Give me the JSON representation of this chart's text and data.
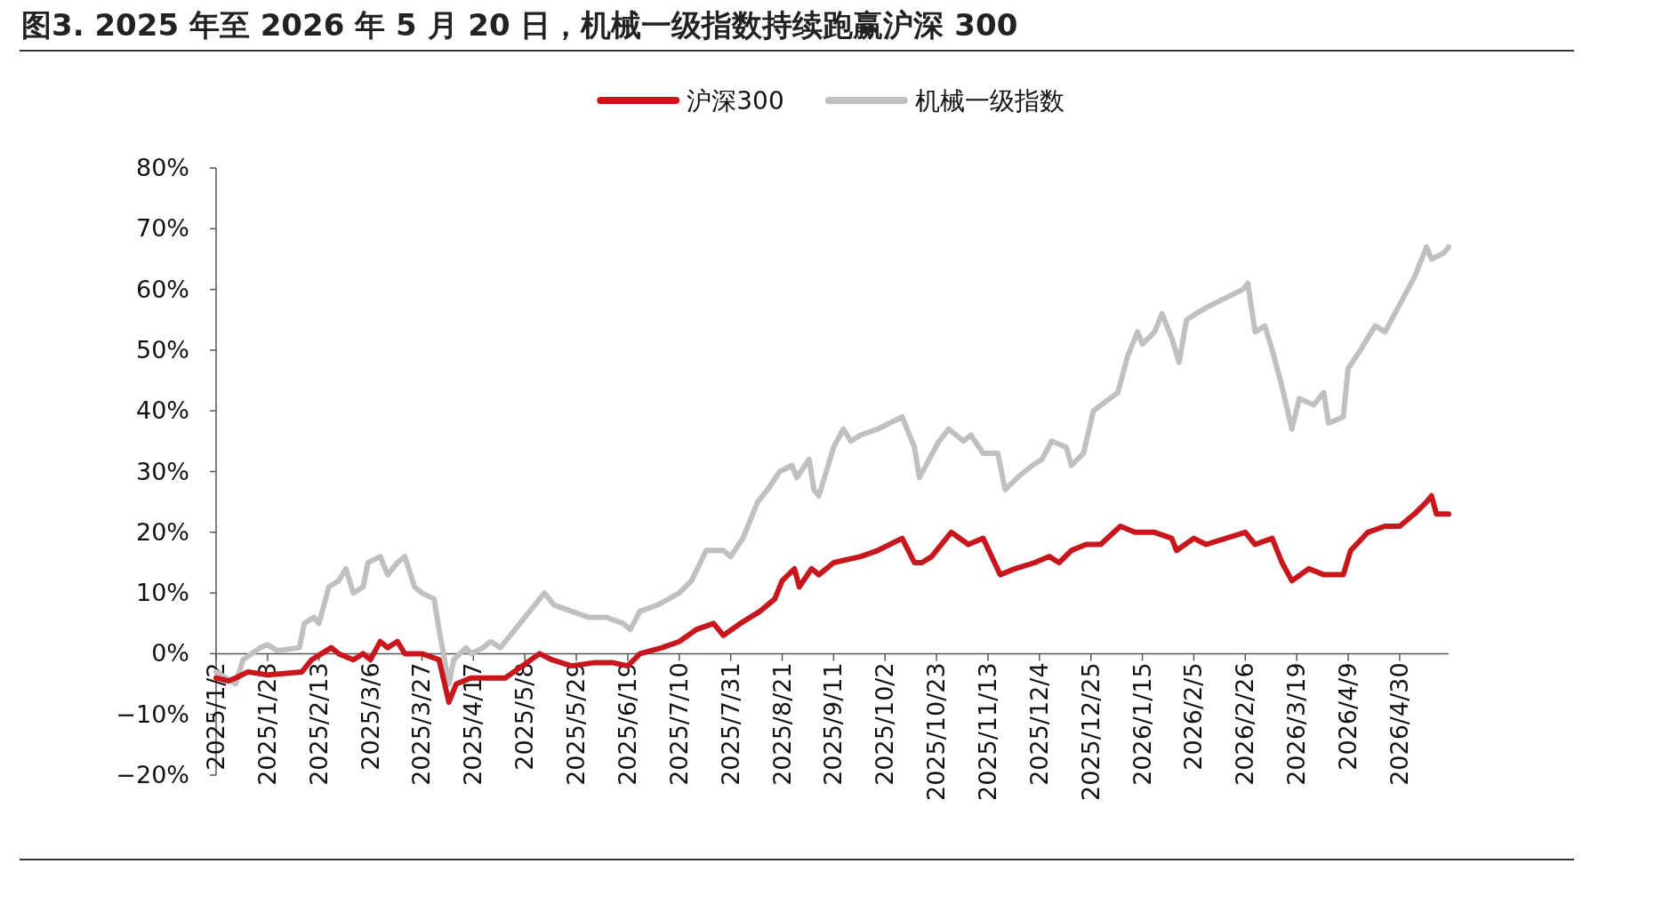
{
  "chart_data": {
    "type": "line",
    "title": "图3. 2025 年至 2026 年 5 月 20 日，机械一级指数持续跑赢沪深 300",
    "legend": "top",
    "xlim": [
      "2025-01-02",
      "2026-05-20"
    ],
    "xticks": [
      {
        "value": "2025-01-02",
        "label": "2025/1/2"
      },
      {
        "value": "2025-01-23",
        "label": "2025/1/23"
      },
      {
        "value": "2025-02-13",
        "label": "2025/2/13"
      },
      {
        "value": "2025-03-06",
        "label": "2025/3/6"
      },
      {
        "value": "2025-03-27",
        "label": "2025/3/27"
      },
      {
        "value": "2025-04-17",
        "label": "2025/4/17"
      },
      {
        "value": "2025-05-08",
        "label": "2025/5/8"
      },
      {
        "value": "2025-05-29",
        "label": "2025/5/29"
      },
      {
        "value": "2025-06-19",
        "label": "2025/6/19"
      },
      {
        "value": "2025-07-10",
        "label": "2025/7/10"
      },
      {
        "value": "2025-07-31",
        "label": "2025/7/31"
      },
      {
        "value": "2025-08-21",
        "label": "2025/8/21"
      },
      {
        "value": "2025-09-11",
        "label": "2025/9/11"
      },
      {
        "value": "2025-10-02",
        "label": "2025/10/2"
      },
      {
        "value": "2025-10-23",
        "label": "2025/10/23"
      },
      {
        "value": "2025-11-13",
        "label": "2025/11/13"
      },
      {
        "value": "2025-12-04",
        "label": "2025/12/4"
      },
      {
        "value": "2025-12-25",
        "label": "2025/12/25"
      },
      {
        "value": "2026-01-15",
        "label": "2026/1/15"
      },
      {
        "value": "2026-02-05",
        "label": "2026/2/5"
      },
      {
        "value": "2026-02-26",
        "label": "2026/2/26"
      },
      {
        "value": "2026-03-19",
        "label": "2026/3/19"
      },
      {
        "value": "2026-04-09",
        "label": "2026/4/9"
      },
      {
        "value": "2026-04-30",
        "label": "2026/4/30"
      }
    ],
    "ylim": [
      -20,
      80
    ],
    "yticks": [
      {
        "value": -20,
        "label": "−20%"
      },
      {
        "value": -10,
        "label": "−10%"
      },
      {
        "value": 0,
        "label": "0%"
      },
      {
        "value": 10,
        "label": "10%"
      },
      {
        "value": 20,
        "label": "20%"
      },
      {
        "value": 30,
        "label": "30%"
      },
      {
        "value": 40,
        "label": "40%"
      },
      {
        "value": 50,
        "label": "50%"
      },
      {
        "value": 60,
        "label": "60%"
      },
      {
        "value": 70,
        "label": "70%"
      },
      {
        "value": 80,
        "label": "80%"
      }
    ],
    "series": [
      {
        "name": "沪深300",
        "color": "#c8161d",
        "x": [
          "2025-01-02",
          "2025-01-07",
          "2025-01-10",
          "2025-01-15",
          "2025-01-23",
          "2025-02-06",
          "2025-02-10",
          "2025-02-14",
          "2025-02-18",
          "2025-02-21",
          "2025-02-27",
          "2025-03-03",
          "2025-03-06",
          "2025-03-10",
          "2025-03-13",
          "2025-03-17",
          "2025-03-20",
          "2025-03-27",
          "2025-04-03",
          "2025-04-07",
          "2025-04-10",
          "2025-04-16",
          "2025-04-24",
          "2025-04-30",
          "2025-05-07",
          "2025-05-14",
          "2025-05-19",
          "2025-05-27",
          "2025-06-05",
          "2025-06-13",
          "2025-06-19",
          "2025-06-24",
          "2025-07-03",
          "2025-07-10",
          "2025-07-17",
          "2025-07-24",
          "2025-07-28",
          "2025-08-04",
          "2025-08-12",
          "2025-08-18",
          "2025-08-21",
          "2025-08-26",
          "2025-08-28",
          "2025-09-02",
          "2025-09-05",
          "2025-09-11",
          "2025-09-22",
          "2025-09-29",
          "2025-10-09",
          "2025-10-14",
          "2025-10-17",
          "2025-10-21",
          "2025-10-29",
          "2025-11-05",
          "2025-11-11",
          "2025-11-18",
          "2025-11-24",
          "2025-12-02",
          "2025-12-08",
          "2025-12-12",
          "2025-12-17",
          "2025-12-23",
          "2025-12-29",
          "2026-01-06",
          "2026-01-12",
          "2026-01-20",
          "2026-01-27",
          "2026-01-29",
          "2026-02-05",
          "2026-02-10",
          "2026-02-26",
          "2026-03-02",
          "2026-03-09",
          "2026-03-13",
          "2026-03-17",
          "2026-03-24",
          "2026-03-30",
          "2026-04-07",
          "2026-04-10",
          "2026-04-17",
          "2026-04-24",
          "2026-04-30",
          "2026-05-06",
          "2026-05-11",
          "2026-05-13",
          "2026-05-15",
          "2026-05-20"
        ],
        "values": [
          -4,
          -4.5,
          -4,
          -3,
          -3.5,
          -3,
          -1,
          0,
          1,
          0,
          -1,
          0,
          -1,
          2,
          1,
          2,
          0,
          0,
          -1,
          -8,
          -5,
          -4,
          -4,
          -4,
          -2,
          0,
          -1,
          -2,
          -1.5,
          -1.5,
          -2,
          0,
          1,
          2,
          4,
          5,
          3,
          5,
          7,
          9,
          12,
          14,
          11,
          14,
          13,
          15,
          16,
          17,
          19,
          15,
          15,
          16,
          20,
          18,
          19,
          13,
          14,
          15,
          16,
          15,
          17,
          18,
          18,
          21,
          20,
          20,
          19,
          17,
          19,
          18,
          20,
          18,
          19,
          15,
          12,
          14,
          13,
          13,
          17,
          20,
          21,
          21,
          23,
          25,
          26,
          23,
          23
        ]
      },
      {
        "name": "机械一级指数",
        "color": "#c0c0c0",
        "x": [
          "2025-01-02",
          "2025-01-06",
          "2025-01-10",
          "2025-01-13",
          "2025-01-20",
          "2025-01-23",
          "2025-01-27",
          "2025-02-05",
          "2025-02-07",
          "2025-02-11",
          "2025-02-13",
          "2025-02-17",
          "2025-02-21",
          "2025-02-24",
          "2025-02-27",
          "2025-03-03",
          "2025-03-05",
          "2025-03-10",
          "2025-03-13",
          "2025-03-17",
          "2025-03-20",
          "2025-03-24",
          "2025-03-27",
          "2025-04-01",
          "2025-04-03",
          "2025-04-07",
          "2025-04-09",
          "2025-04-14",
          "2025-04-16",
          "2025-04-21",
          "2025-04-24",
          "2025-04-28",
          "2025-05-06",
          "2025-05-14",
          "2025-05-16",
          "2025-05-20",
          "2025-05-27",
          "2025-06-03",
          "2025-06-10",
          "2025-06-17",
          "2025-06-20",
          "2025-06-24",
          "2025-07-01",
          "2025-07-10",
          "2025-07-15",
          "2025-07-21",
          "2025-07-28",
          "2025-07-31",
          "2025-08-05",
          "2025-08-11",
          "2025-08-15",
          "2025-08-20",
          "2025-08-25",
          "2025-08-27",
          "2025-09-01",
          "2025-09-03",
          "2025-09-05",
          "2025-09-08",
          "2025-09-11",
          "2025-09-15",
          "2025-09-18",
          "2025-09-22",
          "2025-09-29",
          "2025-10-09",
          "2025-10-14",
          "2025-10-16",
          "2025-10-20",
          "2025-10-24",
          "2025-10-28",
          "2025-11-03",
          "2025-11-06",
          "2025-11-11",
          "2025-11-17",
          "2025-11-20",
          "2025-11-25",
          "2025-12-01",
          "2025-12-05",
          "2025-12-09",
          "2025-12-15",
          "2025-12-17",
          "2025-12-22",
          "2025-12-26",
          "2026-01-05",
          "2026-01-09",
          "2026-01-13",
          "2026-01-15",
          "2026-01-20",
          "2026-01-23",
          "2026-01-27",
          "2026-01-30",
          "2026-02-02",
          "2026-02-06",
          "2026-02-10",
          "2026-02-25",
          "2026-02-27",
          "2026-03-02",
          "2026-03-06",
          "2026-03-09",
          "2026-03-13",
          "2026-03-17",
          "2026-03-20",
          "2026-03-26",
          "2026-03-30",
          "2026-04-01",
          "2026-04-07",
          "2026-04-09",
          "2026-04-14",
          "2026-04-20",
          "2026-04-24",
          "2026-04-28",
          "2026-05-06",
          "2026-05-11",
          "2026-05-13",
          "2026-05-18",
          "2026-05-20"
        ],
        "values": [
          -3,
          -4,
          -5,
          -1,
          1,
          1.5,
          0.5,
          1,
          5,
          6,
          5,
          11,
          12,
          14,
          10,
          11,
          15,
          16,
          13,
          15,
          16,
          11,
          10,
          9,
          4,
          -5,
          -1,
          1,
          0,
          1,
          2,
          1,
          5,
          9,
          10,
          8,
          7,
          6,
          6,
          5,
          4,
          7,
          8,
          10,
          12,
          17,
          17,
          16,
          19,
          25,
          27,
          30,
          31,
          29,
          32,
          27,
          26,
          30,
          34,
          37,
          35,
          36,
          37,
          39,
          34,
          29,
          32,
          35,
          37,
          35,
          36,
          33,
          33,
          27,
          29,
          31,
          32,
          35,
          34,
          31,
          33,
          40,
          43,
          49,
          53,
          51,
          53,
          56,
          52,
          48,
          55,
          56,
          57,
          60,
          61,
          53,
          54,
          50,
          44,
          37,
          42,
          41,
          43,
          38,
          39,
          47,
          50,
          54,
          53,
          56,
          62,
          67,
          65,
          66,
          67
        ]
      }
    ]
  }
}
